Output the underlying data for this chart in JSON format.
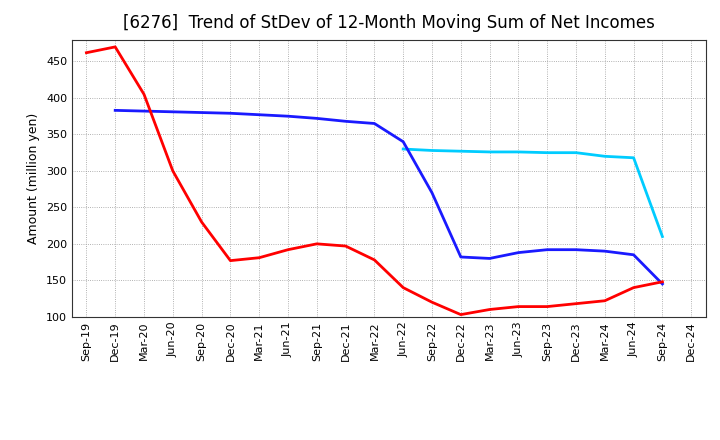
{
  "title": "[6276]  Trend of StDev of 12-Month Moving Sum of Net Incomes",
  "ylabel": "Amount (million yen)",
  "x_labels": [
    "Sep-19",
    "Dec-19",
    "Mar-20",
    "Jun-20",
    "Sep-20",
    "Dec-20",
    "Mar-21",
    "Jun-21",
    "Sep-21",
    "Dec-21",
    "Mar-22",
    "Jun-22",
    "Sep-22",
    "Dec-22",
    "Mar-23",
    "Jun-23",
    "Sep-23",
    "Dec-23",
    "Mar-24",
    "Jun-24",
    "Sep-24",
    "Dec-24"
  ],
  "series_3y_x": [
    "Sep-19",
    "Dec-19",
    "Mar-20",
    "Jun-20",
    "Sep-20",
    "Dec-20",
    "Mar-21",
    "Jun-21",
    "Sep-21",
    "Dec-21",
    "Mar-22",
    "Jun-22",
    "Sep-22",
    "Dec-22",
    "Mar-23",
    "Jun-23",
    "Sep-23",
    "Dec-23",
    "Mar-24",
    "Jun-24",
    "Sep-24"
  ],
  "series_3y_y": [
    462,
    470,
    405,
    300,
    230,
    177,
    181,
    192,
    200,
    197,
    178,
    140,
    120,
    103,
    110,
    114,
    114,
    118,
    122,
    140,
    148
  ],
  "series_5y_x": [
    "Dec-19",
    "Mar-20",
    "Jun-20",
    "Sep-20",
    "Dec-20",
    "Mar-21",
    "Jun-21",
    "Sep-21",
    "Dec-21",
    "Mar-22",
    "Jun-22",
    "Sep-22",
    "Dec-22",
    "Mar-23",
    "Jun-23",
    "Sep-23",
    "Dec-23",
    "Mar-24",
    "Jun-24",
    "Sep-24"
  ],
  "series_5y_y": [
    383,
    382,
    381,
    380,
    379,
    377,
    375,
    372,
    368,
    365,
    340,
    270,
    182,
    180,
    188,
    192,
    192,
    190,
    185,
    145
  ],
  "series_7y_x": [
    "Jun-22",
    "Sep-22",
    "Dec-22",
    "Mar-23",
    "Jun-23",
    "Sep-23",
    "Dec-23",
    "Mar-24",
    "Jun-24",
    "Sep-24"
  ],
  "series_7y_y": [
    330,
    328,
    327,
    326,
    326,
    325,
    325,
    320,
    318,
    210
  ],
  "series_10y_x": [],
  "series_10y_y": [],
  "series_colors": {
    "3 Years": "#ff0000",
    "5 Years": "#1a1aff",
    "7 Years": "#00ccff",
    "10 Years": "#00aa00"
  },
  "ylim": [
    100,
    480
  ],
  "yticks": [
    100,
    150,
    200,
    250,
    300,
    350,
    400,
    450
  ],
  "background_color": "#ffffff",
  "grid_color": "#999999",
  "title_fontsize": 12,
  "label_fontsize": 9,
  "tick_fontsize": 8,
  "legend_fontsize": 9,
  "line_width": 2.0
}
